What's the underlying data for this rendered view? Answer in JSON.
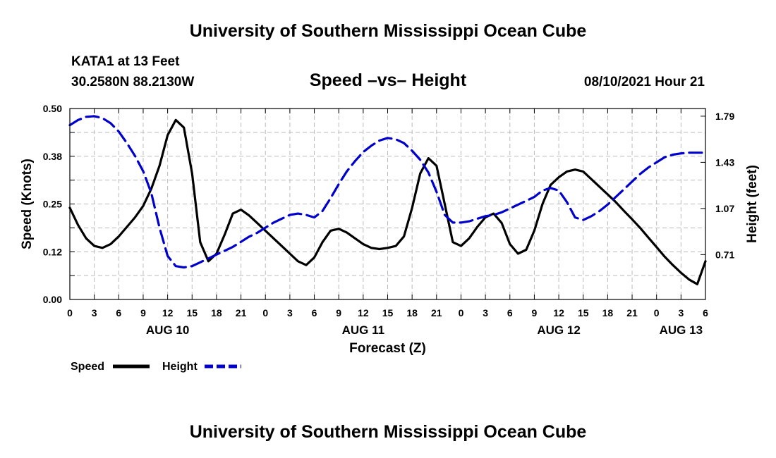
{
  "header": {
    "title": "University of Southern Mississippi Ocean Cube",
    "station": "KATA1 at 13 Feet",
    "coords": "30.2580N  88.2130W",
    "chart_title": "Speed –vs– Height",
    "timestamp": "08/10/2021 Hour 21"
  },
  "footer": {
    "title": "University of Southern Mississippi Ocean Cube"
  },
  "colors": {
    "speed": "#000000",
    "height": "#0000cc",
    "grid": "#bbbbbb"
  },
  "chart_data": {
    "type": "line",
    "title": "Speed –vs– Height",
    "xlabel": "Forecast (Z)",
    "ylabel": "Speed (Knots)",
    "y2label": "Height (feet)",
    "x_unit": "hours since AUG 10 00Z",
    "xlim": [
      0,
      78
    ],
    "ylim": [
      0,
      0.5
    ],
    "y2lim": [
      0.36,
      1.85
    ],
    "x_ticks": [
      0,
      3,
      6,
      9,
      12,
      15,
      18,
      21,
      24,
      27,
      30,
      33,
      36,
      39,
      42,
      45,
      48,
      51,
      54,
      57,
      60,
      63,
      66,
      69,
      72,
      75,
      78
    ],
    "x_tick_labels": [
      "0",
      "3",
      "6",
      "9",
      "12",
      "15",
      "18",
      "21",
      "0",
      "3",
      "6",
      "9",
      "12",
      "15",
      "18",
      "21",
      "0",
      "3",
      "6",
      "9",
      "12",
      "15",
      "18",
      "21",
      "0",
      "3",
      "6"
    ],
    "date_labels": [
      {
        "label": "AUG 10",
        "x": 12
      },
      {
        "label": "AUG 11",
        "x": 36
      },
      {
        "label": "AUG 12",
        "x": 60
      },
      {
        "label": "AUG 13",
        "x": 75
      }
    ],
    "y_ticks": [
      0.0,
      0.125,
      0.25,
      0.375,
      0.5
    ],
    "y_tick_labels": [
      "0.00",
      "0.12",
      "0.25",
      "0.38",
      "0.50"
    ],
    "y2_ticks": [
      0.71,
      1.07,
      1.43,
      1.79
    ],
    "y2_tick_labels": [
      "0.71",
      "1.07",
      "1.43",
      "1.79"
    ],
    "grid": true,
    "legend": {
      "placement": "bottom-left",
      "entries": [
        "Speed",
        "Height"
      ]
    },
    "series": [
      {
        "name": "Speed",
        "axis": "left",
        "style": "solid",
        "x": [
          0,
          1,
          2,
          3,
          4,
          5,
          6,
          7,
          8,
          9,
          10,
          11,
          12,
          13,
          14,
          15,
          16,
          17,
          18,
          19,
          20,
          21,
          22,
          23,
          24,
          25,
          26,
          27,
          28,
          29,
          30,
          31,
          32,
          33,
          34,
          35,
          36,
          37,
          38,
          39,
          40,
          41,
          42,
          43,
          44,
          45,
          46,
          47,
          48,
          49,
          50,
          51,
          52,
          53,
          54,
          55,
          56,
          57,
          58,
          59,
          60,
          61,
          62,
          63,
          64,
          65,
          66,
          67,
          68,
          69,
          70,
          71,
          72,
          73,
          74,
          75,
          76,
          77,
          78
        ],
        "values": [
          0.24,
          0.195,
          0.16,
          0.14,
          0.135,
          0.145,
          0.165,
          0.19,
          0.215,
          0.245,
          0.29,
          0.35,
          0.43,
          0.47,
          0.45,
          0.33,
          0.15,
          0.1,
          0.12,
          0.17,
          0.225,
          0.235,
          0.22,
          0.2,
          0.18,
          0.16,
          0.14,
          0.12,
          0.1,
          0.09,
          0.11,
          0.15,
          0.18,
          0.185,
          0.175,
          0.16,
          0.145,
          0.135,
          0.132,
          0.135,
          0.14,
          0.165,
          0.24,
          0.33,
          0.37,
          0.35,
          0.25,
          0.15,
          0.14,
          0.16,
          0.19,
          0.215,
          0.225,
          0.2,
          0.145,
          0.12,
          0.13,
          0.18,
          0.25,
          0.3,
          0.32,
          0.335,
          0.34,
          0.335,
          0.315,
          0.295,
          0.275,
          0.255,
          0.232,
          0.21,
          0.187,
          0.162,
          0.137,
          0.112,
          0.09,
          0.07,
          0.052,
          0.04,
          0.1
        ]
      },
      {
        "name": "Height",
        "axis": "right",
        "style": "dashed",
        "x": [
          0,
          1,
          2,
          3,
          4,
          5,
          6,
          7,
          8,
          9,
          10,
          11,
          12,
          13,
          14,
          15,
          16,
          17,
          18,
          19,
          20,
          21,
          22,
          23,
          24,
          25,
          26,
          27,
          28,
          29,
          30,
          31,
          32,
          33,
          34,
          35,
          36,
          37,
          38,
          39,
          40,
          41,
          42,
          43,
          44,
          45,
          46,
          47,
          48,
          49,
          50,
          51,
          52,
          53,
          54,
          55,
          56,
          57,
          58,
          59,
          60,
          61,
          62,
          63,
          64,
          65,
          66,
          67,
          68,
          69,
          70,
          71,
          72,
          73,
          74,
          75,
          76,
          77,
          78
        ],
        "values": [
          1.72,
          1.76,
          1.785,
          1.79,
          1.775,
          1.735,
          1.67,
          1.58,
          1.48,
          1.36,
          1.19,
          0.92,
          0.7,
          0.62,
          0.61,
          0.62,
          0.65,
          0.68,
          0.71,
          0.74,
          0.77,
          0.81,
          0.85,
          0.88,
          0.92,
          0.96,
          0.99,
          1.02,
          1.03,
          1.02,
          1.0,
          1.05,
          1.15,
          1.26,
          1.36,
          1.44,
          1.51,
          1.56,
          1.6,
          1.62,
          1.61,
          1.58,
          1.52,
          1.45,
          1.35,
          1.2,
          1.02,
          0.96,
          0.96,
          0.97,
          0.99,
          1.01,
          1.02,
          1.04,
          1.07,
          1.1,
          1.13,
          1.16,
          1.21,
          1.23,
          1.21,
          1.12,
          1.0,
          0.98,
          1.01,
          1.05,
          1.1,
          1.16,
          1.22,
          1.28,
          1.34,
          1.39,
          1.43,
          1.47,
          1.49,
          1.5,
          1.505,
          1.505,
          1.505
        ]
      }
    ]
  }
}
